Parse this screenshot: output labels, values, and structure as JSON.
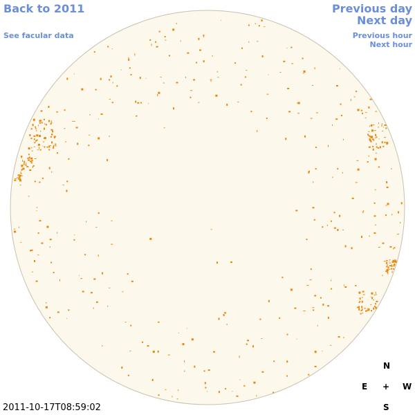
{
  "links": {
    "back": "Back to 2011",
    "facular": "See facular data",
    "previous_day": "Previous day",
    "next_day": "Next day",
    "previous_hour": "Previous hour",
    "next_hour": "Next hour"
  },
  "timestamp": "2011-10-17T08:59:02",
  "compass": {
    "north": "N",
    "east": "E",
    "center": "+",
    "west": "W",
    "south": "S"
  }
}
